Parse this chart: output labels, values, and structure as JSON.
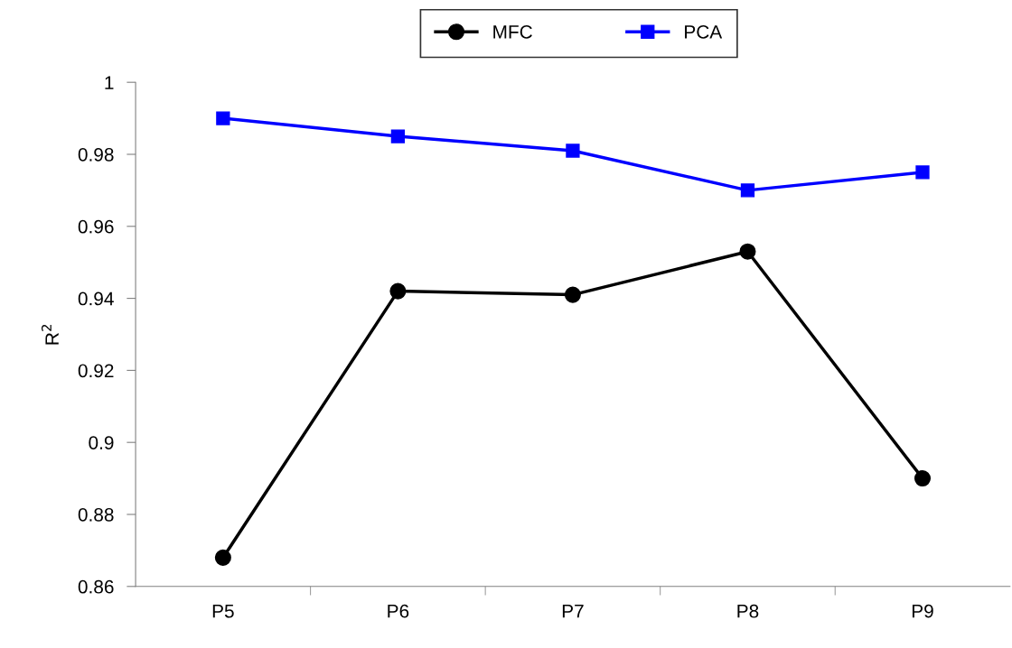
{
  "chart_data": {
    "type": "line",
    "ylabel": "R$^{2}$",
    "categories": [
      "P5",
      "P6",
      "P7",
      "P8",
      "P9"
    ],
    "series": [
      {
        "name": "MFC",
        "color": "#000000",
        "marker": "circle",
        "values": [
          0.868,
          0.942,
          0.941,
          0.953,
          0.89
        ]
      },
      {
        "name": "PCA",
        "color": "#0000ff",
        "marker": "square",
        "values": [
          0.99,
          0.985,
          0.981,
          0.97,
          0.975
        ]
      }
    ],
    "ylim": [
      0.86,
      1
    ],
    "yticks": [
      0.86,
      0.88,
      0.9,
      0.92,
      0.94,
      0.96,
      0.98,
      1
    ],
    "grid": false,
    "legend": "top",
    "line_style": "solid"
  }
}
